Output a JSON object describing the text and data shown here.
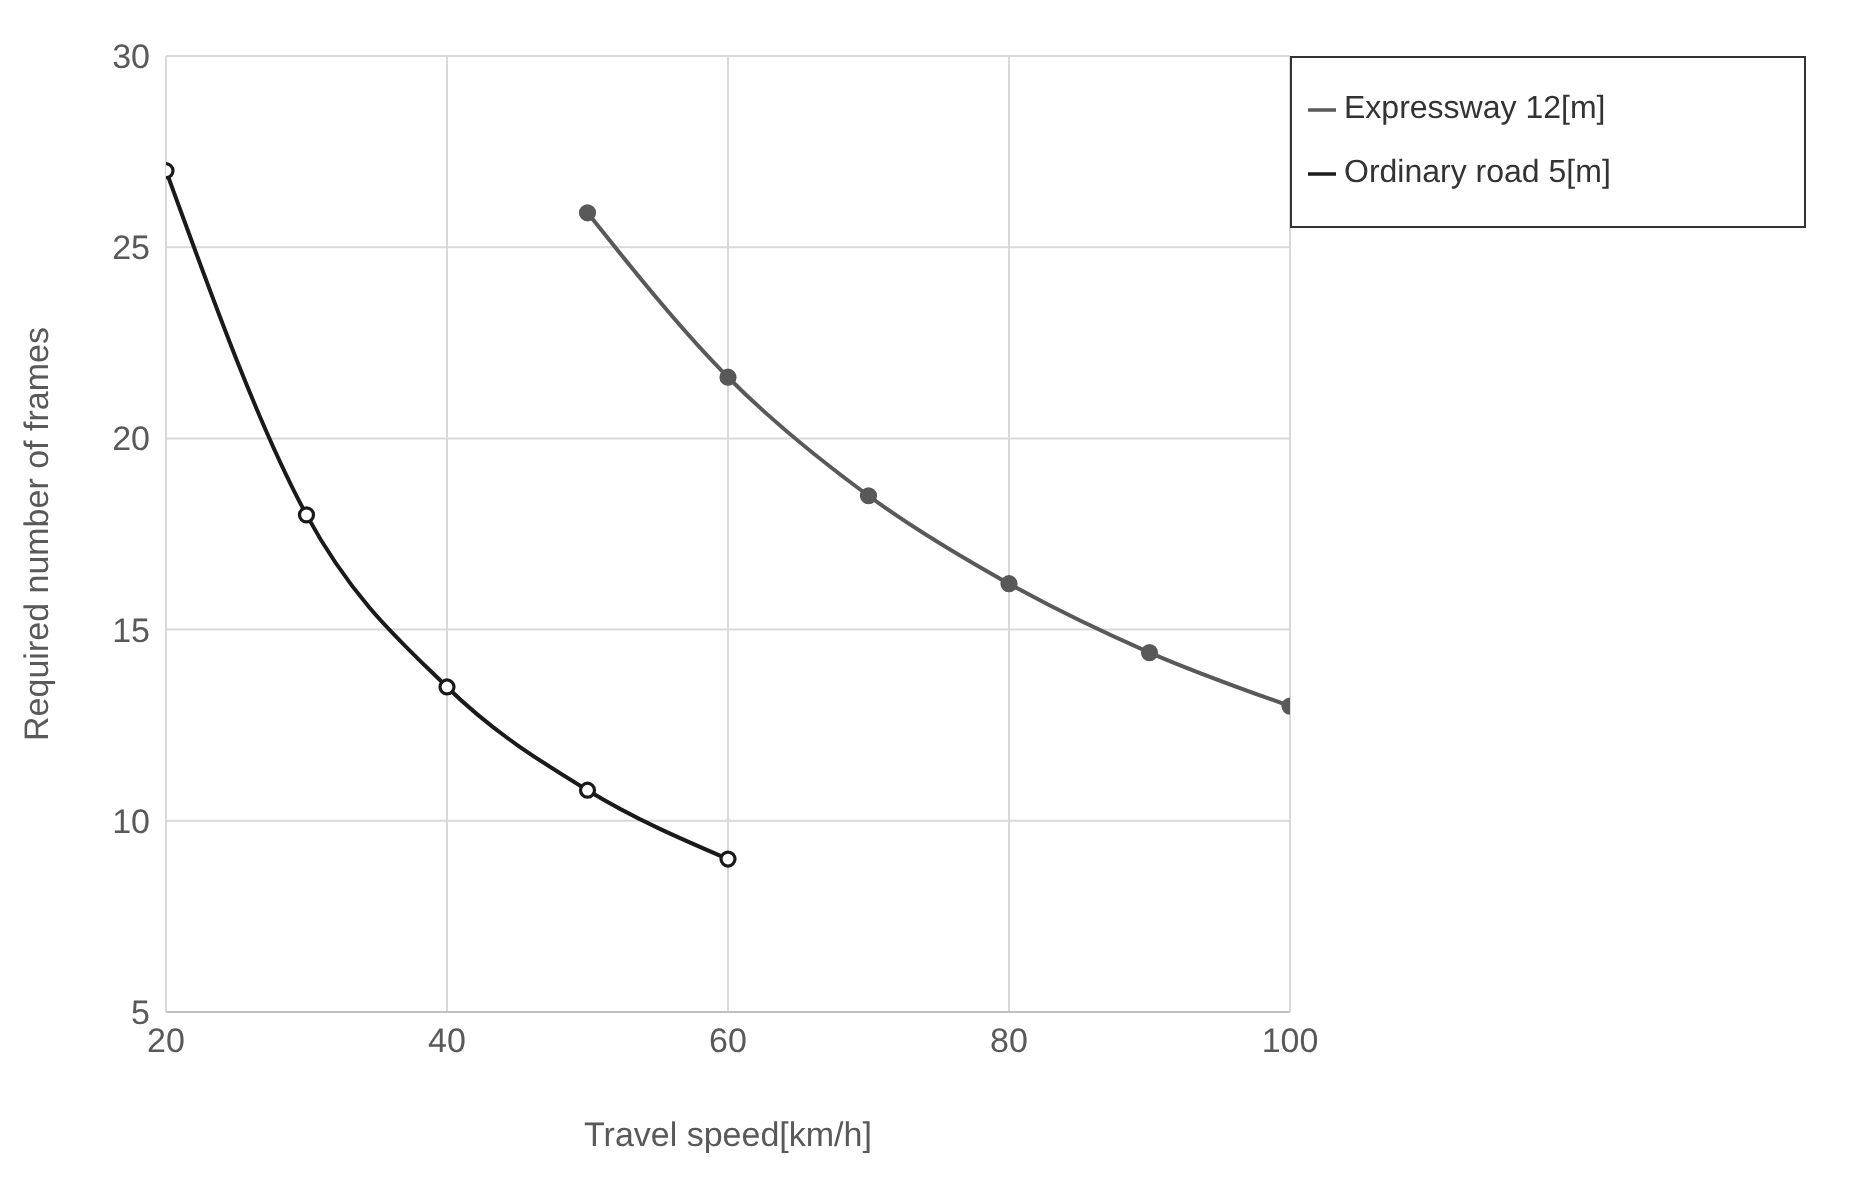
{
  "chart_data": {
    "type": "line",
    "xlabel": "Travel speed[km/h]",
    "ylabel": "Required number of frames",
    "xlim": [
      20,
      100
    ],
    "xticks": [
      20,
      40,
      60,
      80,
      100
    ],
    "ylim": [
      5,
      30
    ],
    "yticks": [
      5,
      10,
      15,
      20,
      25,
      30
    ],
    "grid": true,
    "legend": "top right",
    "marker": "circle",
    "series": [
      {
        "name": "Expressway 12[m]",
        "color": "#595959",
        "x": [
          50,
          60,
          70,
          80,
          90,
          100
        ],
        "values": [
          25.9,
          21.6,
          18.5,
          16.2,
          14.4,
          13.0
        ]
      },
      {
        "name": "Ordinary road 5[m]",
        "color": "#1a1a1a",
        "x": [
          20,
          30,
          40,
          50,
          60
        ],
        "values": [
          27,
          18,
          13.5,
          10.8,
          9
        ]
      }
    ]
  }
}
